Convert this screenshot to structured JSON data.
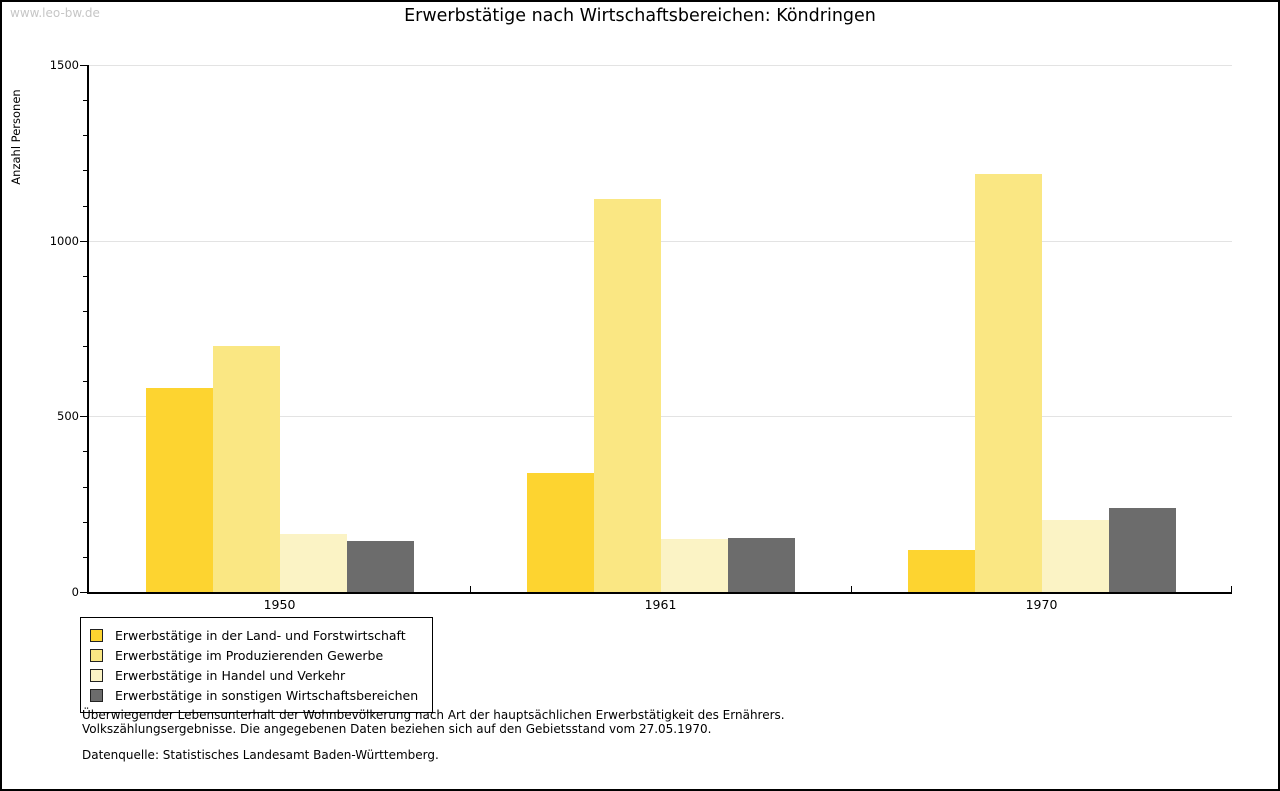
{
  "watermark": "www.leo-bw.de",
  "title": "Erwerbstätige nach Wirtschaftsbereichen: Köndringen",
  "chart_data": {
    "type": "bar",
    "title": "Erwerbstätige nach Wirtschaftsbereichen: Köndringen",
    "xlabel": "",
    "ylabel": "Anzahl Personen",
    "ylim": [
      0,
      1500
    ],
    "yticks": [
      0,
      500,
      1000,
      1500
    ],
    "yminor_interval": 100,
    "grid": "horizontal-major",
    "legend_position": "bottom-left-box",
    "categories": [
      "1950",
      "1961",
      "1970"
    ],
    "series": [
      {
        "name": "Erwerbstätige in der Land- und Forstwirtschaft",
        "color": "#FDD430",
        "values": [
          580,
          340,
          120
        ]
      },
      {
        "name": "Erwerbstätige im Produzierenden Gewerbe",
        "color": "#FAE783",
        "values": [
          700,
          1120,
          1190
        ]
      },
      {
        "name": "Erwerbstätige in Handel und Verkehr",
        "color": "#FBF3C5",
        "values": [
          165,
          150,
          205
        ]
      },
      {
        "name": "Erwerbstätige in sonstigen Wirtschaftsbereichen",
        "color": "#6C6C6C",
        "values": [
          145,
          155,
          240
        ]
      }
    ]
  },
  "footnote": {
    "line1": "Überwiegender Lebensunterhalt der Wohnbevölkerung nach Art der hauptsächlichen Erwerbstätigkeit des Ernährers.",
    "line2": "Volkszählungsergebnisse. Die angegebenen Daten beziehen sich auf den Gebietsstand vom 27.05.1970.",
    "source": "Datenquelle: Statistisches Landesamt Baden-Württemberg."
  }
}
